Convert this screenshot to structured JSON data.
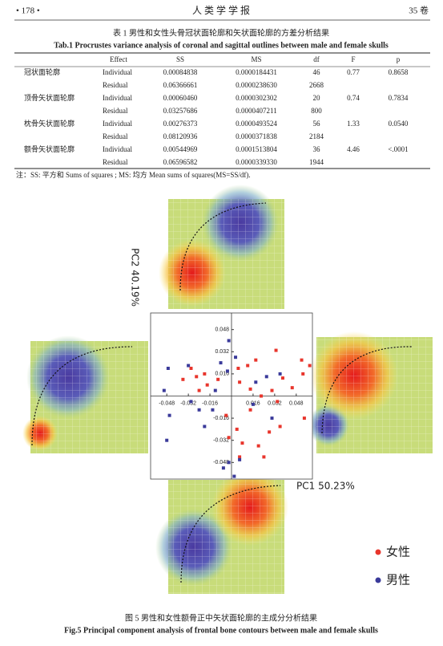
{
  "header": {
    "page_left": "• 178 •",
    "title": "人 类 学 学 报",
    "page_right": "35 卷"
  },
  "table": {
    "caption_cn": "表 1  男性和女性头骨冠状面轮廓和矢状面轮廓的方差分析结果",
    "caption_en": "Tab.1  Procrustes variance analysis of coronal and sagittal outlines between male and female skulls",
    "columns": [
      "Effect",
      "SS",
      "MS",
      "df",
      "F",
      "p"
    ],
    "groups": [
      {
        "label": "冠状面轮廓",
        "individual": [
          "Individual",
          "0.00084838",
          "0.0000184431",
          "46",
          "0.77",
          "0.8658"
        ],
        "residual": [
          "Residual",
          "0.06366661",
          "0.0000238630",
          "2668"
        ]
      },
      {
        "label": "顶骨矢状面轮廓",
        "individual": [
          "Individual",
          "0.00060460",
          "0.0000302302",
          "20",
          "0.74",
          "0.7834"
        ],
        "residual": [
          "Residual",
          "0.03257686",
          "0.0000407211",
          "800"
        ]
      },
      {
        "label": "枕骨矢状面轮廓",
        "individual": [
          "Individual",
          "0.00276373",
          "0.0000493524",
          "56",
          "1.33",
          "0.0540"
        ],
        "residual": [
          "Residual",
          "0.08120936",
          "0.0000371838",
          "2184"
        ]
      },
      {
        "label": "额骨矢状面轮廓",
        "individual": [
          "Individual",
          "0.00544969",
          "0.0001513804",
          "36",
          "4.46",
          "<.0001"
        ],
        "residual": [
          "Residual",
          "0.06596582",
          "0.0000339330",
          "1944"
        ]
      }
    ],
    "note": "注：SS: 平方和 Sums of squares ; MS: 均方 Mean sums of squares(MS=SS/df)."
  },
  "chart_data": {
    "type": "scatter",
    "xlabel": "PC1 50.23%",
    "ylabel": "PC2 40.19%",
    "xlim": [
      -0.06,
      0.06
    ],
    "ylim": [
      -0.06,
      0.06
    ],
    "xticks": [
      -0.048,
      -0.032,
      -0.016,
      0.016,
      0.032,
      0.048
    ],
    "yticks": [
      -0.048,
      -0.032,
      -0.016,
      0.016,
      0.032,
      0.048
    ],
    "series": [
      {
        "name": "女性",
        "color": "#e8352c",
        "x": [
          0.033,
          0.052,
          0.053,
          0.058,
          0.038,
          0.045,
          0.03,
          0.018,
          0.012,
          0.005,
          -0.03,
          -0.018,
          -0.02,
          -0.024,
          -0.026,
          -0.036,
          0.014,
          0.022,
          0.006,
          -0.01,
          0.004,
          0.008,
          0.02,
          0.024,
          0.006,
          0.028,
          -0.002,
          0.034,
          0.054,
          0.014,
          -0.004,
          0.036
        ],
        "values": [
          0.033,
          0.026,
          0.016,
          0.022,
          0.013,
          0.006,
          0.004,
          0.026,
          0.022,
          0.02,
          0.02,
          0.008,
          0.016,
          0.004,
          0.014,
          0.012,
          0.005,
          0.0,
          0.01,
          0.012,
          -0.024,
          -0.034,
          -0.036,
          -0.044,
          -0.044,
          -0.026,
          -0.03,
          -0.004,
          -0.016,
          -0.01,
          -0.014,
          -0.022
        ]
      },
      {
        "name": "男性",
        "color": "#3a3a9a",
        "x": [
          -0.047,
          -0.05,
          -0.032,
          -0.046,
          -0.024,
          -0.012,
          -0.003,
          0.003,
          0.018,
          0.03,
          -0.014,
          -0.02,
          -0.048,
          -0.002,
          0.002,
          0.006,
          -0.006,
          0.016,
          -0.002,
          -0.03,
          0.026,
          0.036,
          -0.008
        ],
        "values": [
          0.02,
          0.004,
          0.022,
          -0.014,
          -0.01,
          0.004,
          0.018,
          0.028,
          0.01,
          -0.016,
          -0.01,
          -0.022,
          -0.032,
          -0.048,
          -0.058,
          -0.046,
          -0.052,
          -0.006,
          0.04,
          -0.004,
          0.014,
          0.016,
          0.024
        ]
      }
    ]
  },
  "figure": {
    "caption_cn": "图 5  男性和女性额骨正中矢状面轮廓的主成分分析结果",
    "caption_en": "Fig.5  Principal component analysis of frontal bone contours between male and female skulls"
  }
}
